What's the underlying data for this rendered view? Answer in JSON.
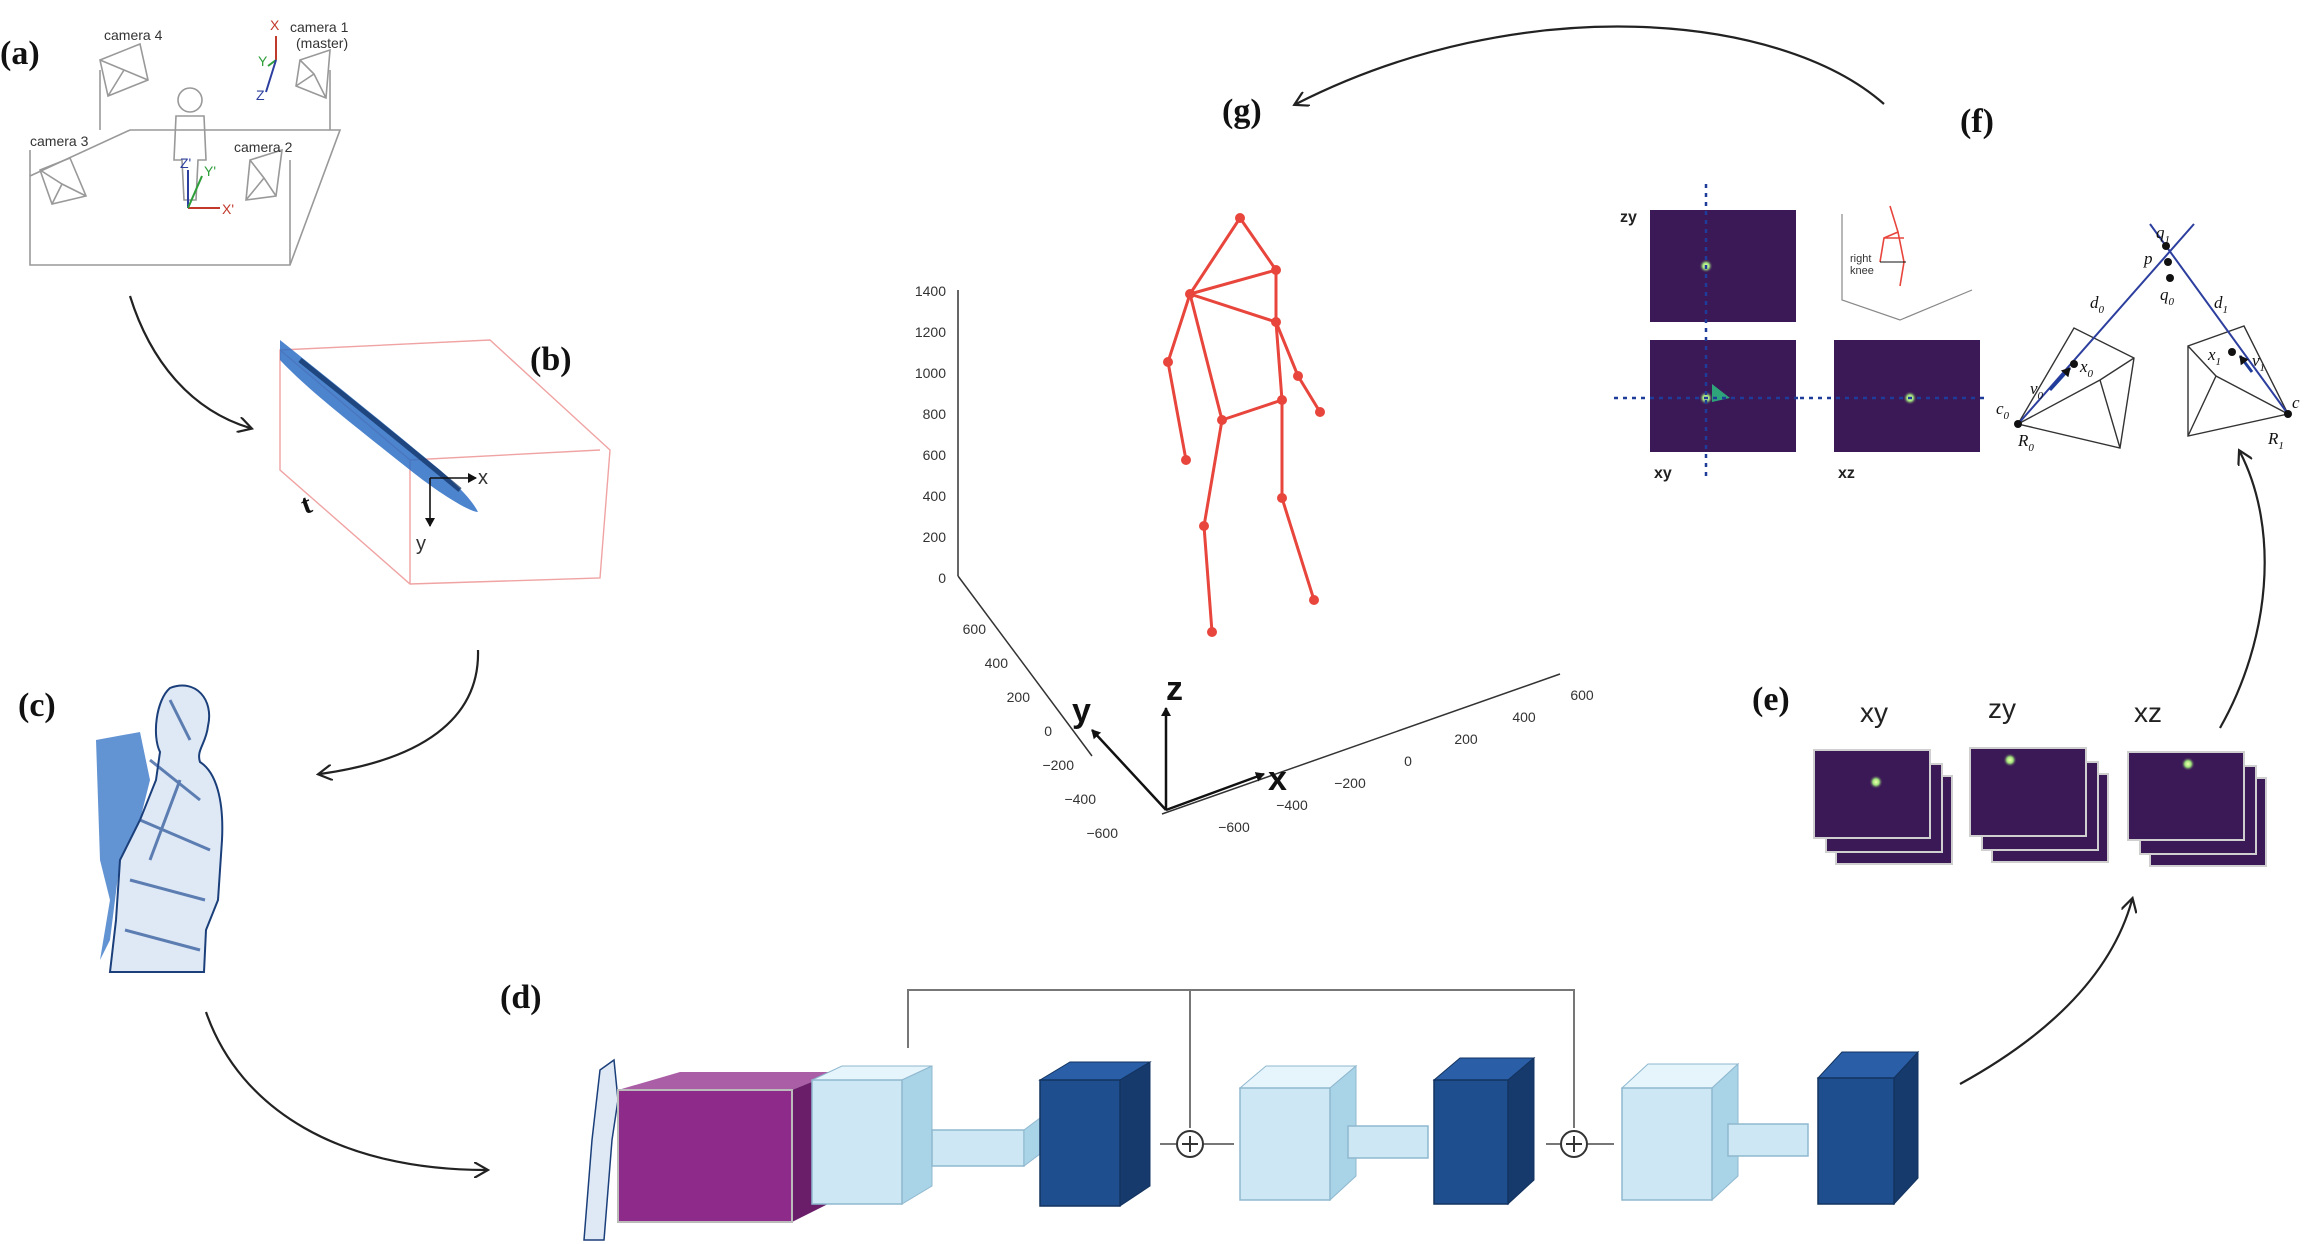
{
  "panels": {
    "a": "(a)",
    "b": "(b)",
    "c": "(c)",
    "d": "(d)",
    "e": "(e)",
    "f": "(f)",
    "g": "(g)"
  },
  "panel_a": {
    "camera1": "camera 1",
    "camera1_sub": "(master)",
    "camera2": "camera 2",
    "camera3": "camera 3",
    "camera4": "camera 4",
    "axis_x": "X",
    "axis_y": "Y",
    "axis_z": "Z",
    "axis_xprime": "X'",
    "axis_yprime": "Y'",
    "axis_zprime": "Z'"
  },
  "panel_b": {
    "axis_x": "x",
    "axis_y": "y",
    "axis_t": "t"
  },
  "panel_e": {
    "titles": [
      "xy",
      "zy",
      "xz"
    ]
  },
  "panel_f": {
    "heatmap_labels": {
      "zy": "zy",
      "xy": "xy",
      "xz": "xz"
    },
    "inset_label_1": "right",
    "inset_label_2": "knee",
    "math": {
      "q1": "q",
      "q1_sub": "1",
      "p": "p",
      "q0": "q",
      "q0_sub": "0",
      "d0": "d",
      "d0_sub": "0",
      "d1": "d",
      "d1_sub": "1",
      "x0": "x",
      "x0_sub": "0",
      "x1": "x",
      "x1_sub": "1",
      "v0": "v",
      "v0_sub": "0",
      "v1": "v",
      "v1_sub": "1",
      "c0": "c",
      "c0_sub": "0",
      "c1": "c",
      "R0": "R",
      "R0_sub": "0",
      "R1": "R",
      "R1_sub": "1"
    }
  },
  "panel_g": {
    "z_ticks": [
      "1400",
      "1200",
      "1000",
      "800",
      "600",
      "400",
      "200",
      "0"
    ],
    "y_ticks": [
      "600",
      "400",
      "200",
      "0",
      "−200",
      "−400",
      "−600"
    ],
    "x_ticks": [
      "−600",
      "−400",
      "−200",
      "0",
      "200",
      "400",
      "600"
    ],
    "axis_x": "x",
    "axis_y": "y",
    "axis_z": "z"
  },
  "colors": {
    "heatmap_bg": "#3b1856",
    "blob": "#bff07a",
    "skeleton": "#e8453c",
    "purple_block": "#8e2a8a",
    "light_block": "#cde8f4",
    "dark_block": "#1f4e8f",
    "cloud_blue": "#2d6fc4"
  }
}
